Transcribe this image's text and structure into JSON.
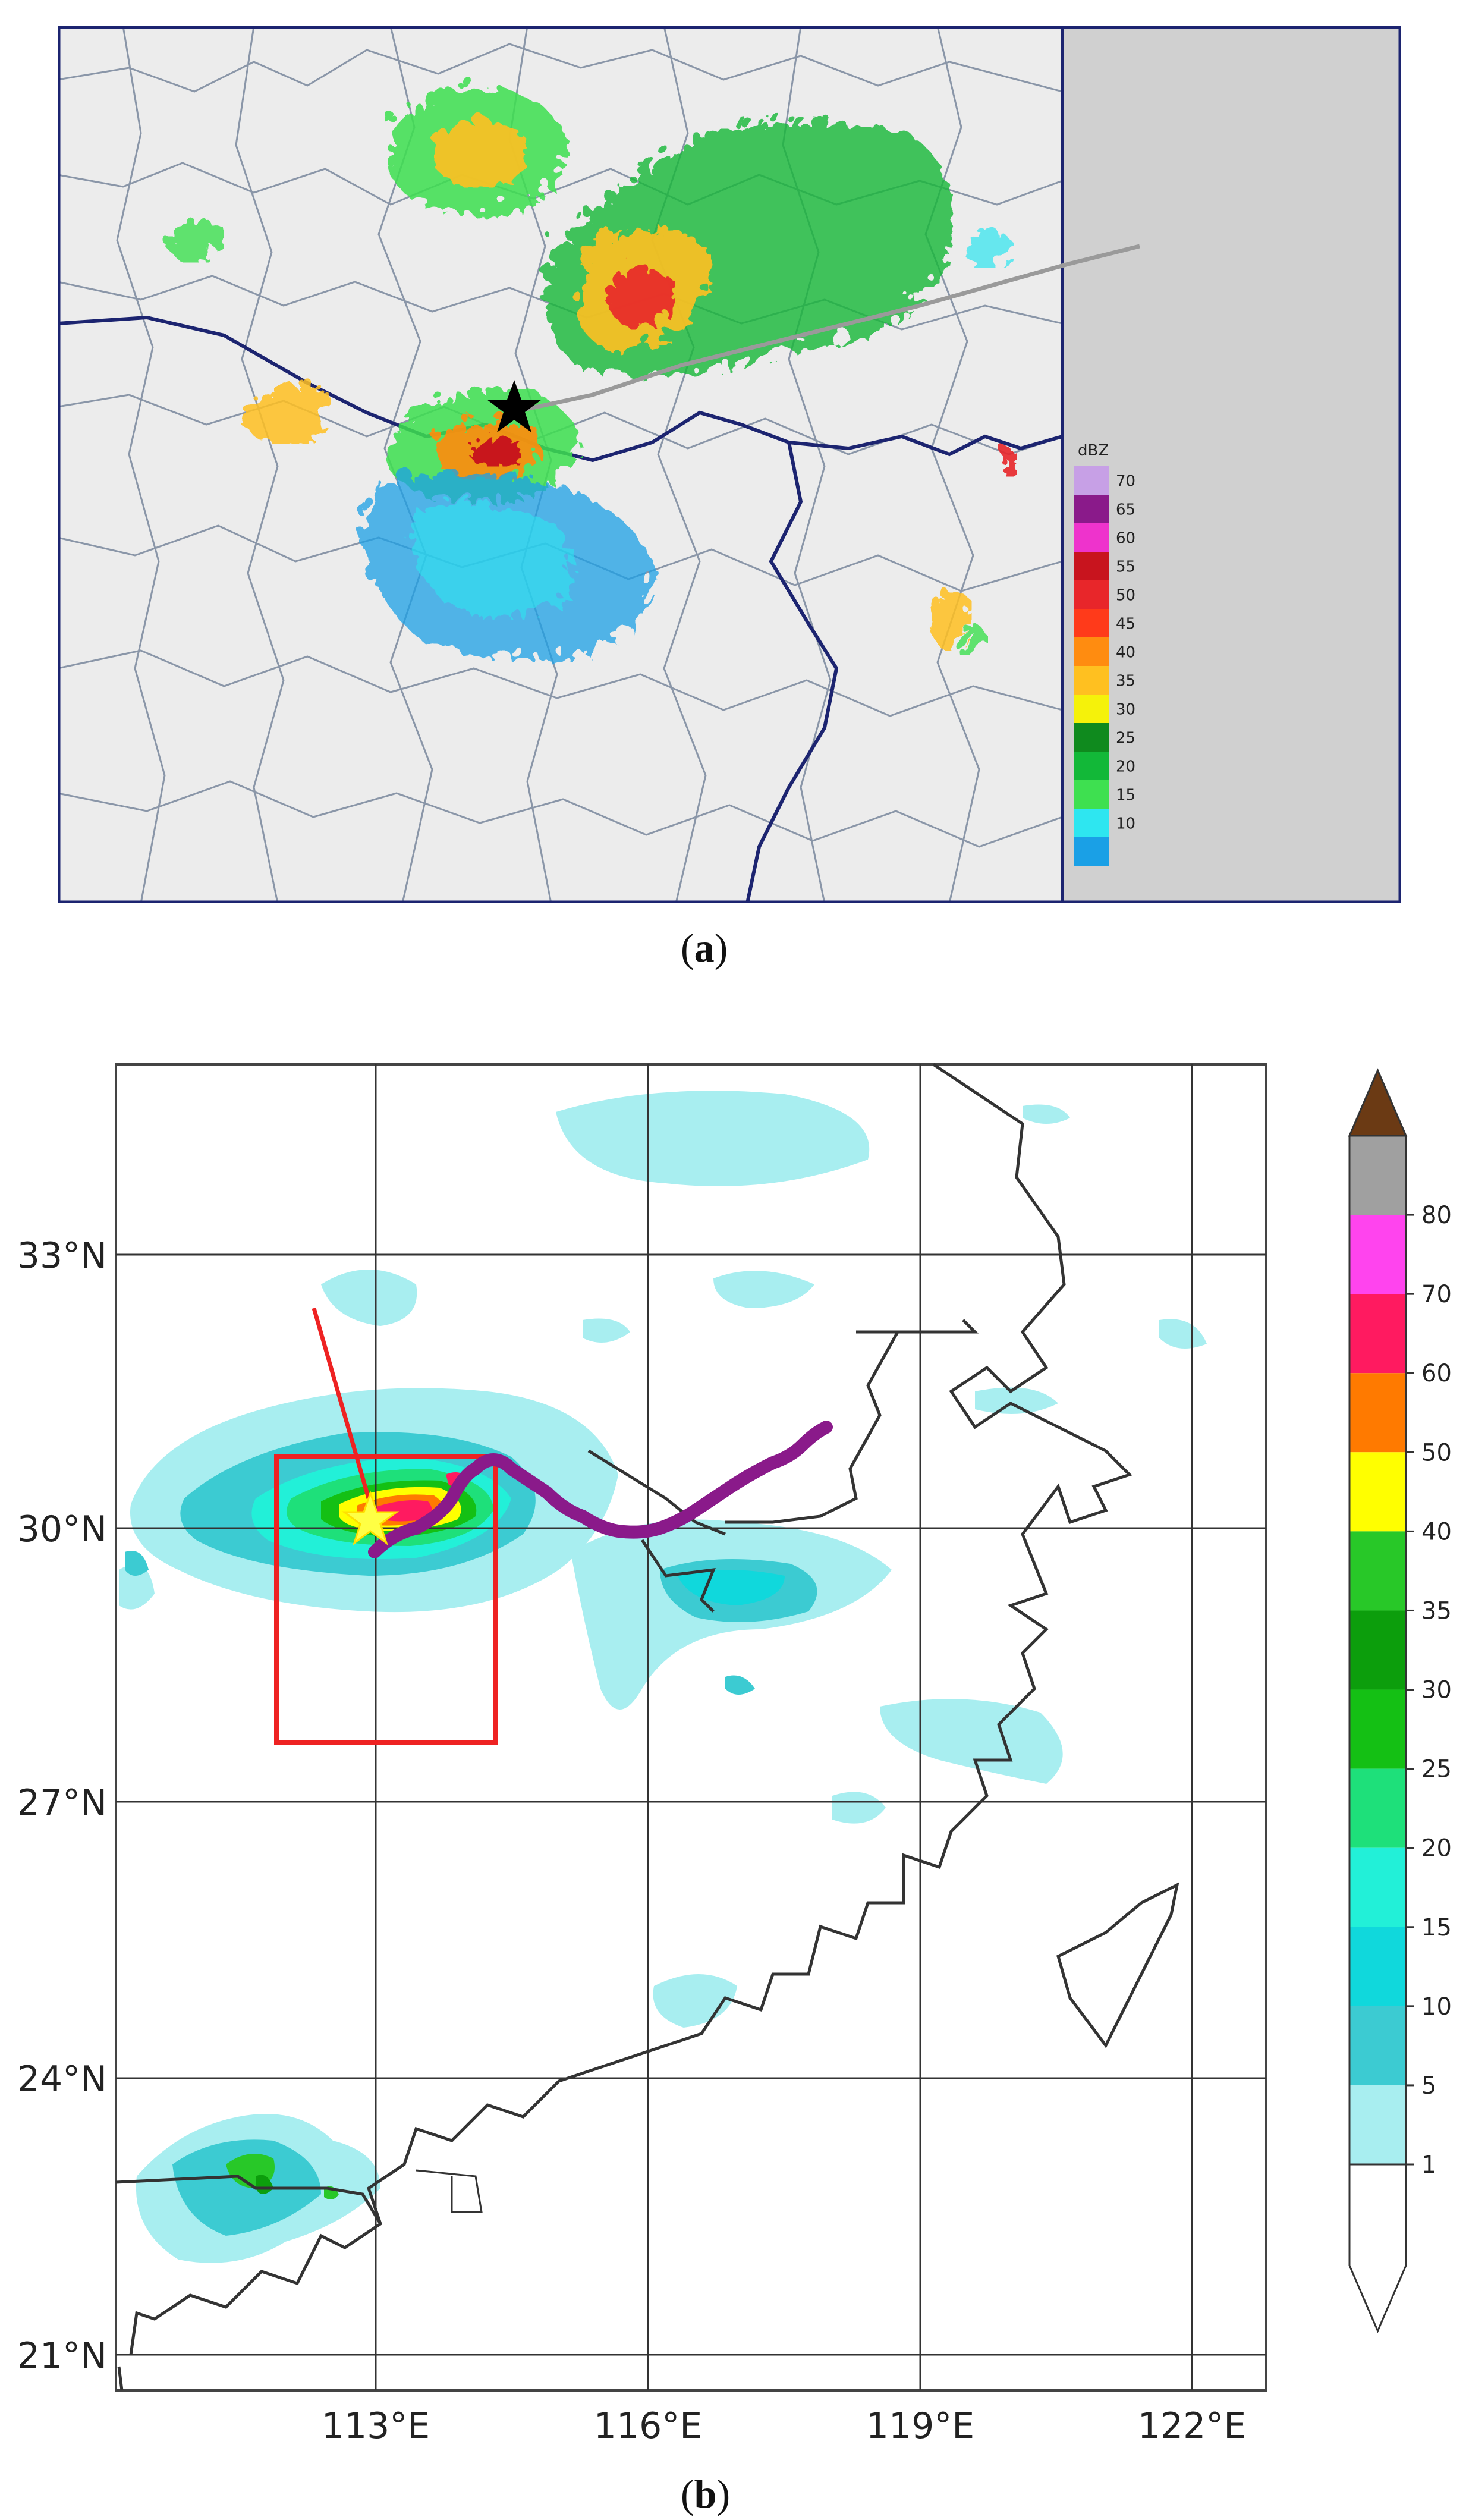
{
  "panel_a": {
    "label_letter": "a",
    "legend_title": "dBZ",
    "legend_levels": [
      {
        "value": "70",
        "color": "#c7a0e6"
      },
      {
        "value": "65",
        "color": "#8a1a8a"
      },
      {
        "value": "60",
        "color": "#ee33cc"
      },
      {
        "value": "55",
        "color": "#c8141e"
      },
      {
        "value": "50",
        "color": "#e8262a"
      },
      {
        "value": "45",
        "color": "#ff3a1a"
      },
      {
        "value": "40",
        "color": "#ff8c10"
      },
      {
        "value": "35",
        "color": "#ffc020"
      },
      {
        "value": "30",
        "color": "#f5f20a"
      },
      {
        "value": "25",
        "color": "#0f8a1e"
      },
      {
        "value": "20",
        "color": "#12b838"
      },
      {
        "value": "15",
        "color": "#3ee050"
      },
      {
        "value": "10",
        "color": "#2ee6f0"
      },
      {
        "value": "",
        "color": "#1aa0e6"
      }
    ],
    "marker_icon": "star-icon"
  },
  "panel_b": {
    "label_letter": "b",
    "lat_labels": [
      "33°N",
      "30°N",
      "27°N",
      "24°N",
      "21°N"
    ],
    "lon_labels": [
      "113°E",
      "116°E",
      "119°E",
      "122°E"
    ],
    "colorbar": [
      {
        "value": "1",
        "color": "#a8eef0"
      },
      {
        "value": "5",
        "color": "#3ccbd2"
      },
      {
        "value": "10",
        "color": "#10d8dc"
      },
      {
        "value": "15",
        "color": "#22f0d8"
      },
      {
        "value": "20",
        "color": "#1ee07a"
      },
      {
        "value": "25",
        "color": "#14c014"
      },
      {
        "value": "30",
        "color": "#0c9e0c"
      },
      {
        "value": "35",
        "color": "#28c828"
      },
      {
        "value": "40",
        "color": "#ffff00"
      },
      {
        "value": "50",
        "color": "#ff7a00"
      },
      {
        "value": "60",
        "color": "#ff1a60"
      },
      {
        "value": "70",
        "color": "#ff44ee"
      },
      {
        "value": "80",
        "color": "#a0a0a0"
      }
    ],
    "colorbar_top_color": "#6b3a14",
    "track_color": "#8a1a8a",
    "box_color": "#ee2222",
    "marker_icon": "star-icon"
  }
}
